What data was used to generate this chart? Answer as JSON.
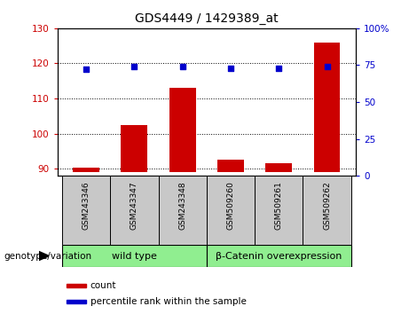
{
  "title": "GDS4449 / 1429389_at",
  "categories": [
    "GSM243346",
    "GSM243347",
    "GSM243348",
    "GSM509260",
    "GSM509261",
    "GSM509262"
  ],
  "bar_values": [
    90.3,
    102.5,
    113.0,
    92.5,
    91.5,
    126.0
  ],
  "scatter_values": [
    72,
    74,
    74,
    73,
    73,
    74
  ],
  "ylim_left": [
    88,
    130
  ],
  "ylim_right": [
    0,
    100
  ],
  "yticks_left": [
    90,
    100,
    110,
    120,
    130
  ],
  "yticks_right": [
    0,
    25,
    50,
    75,
    100
  ],
  "bar_color": "#cc0000",
  "scatter_color": "#0000cc",
  "bar_bottom": 89,
  "groups": [
    {
      "label": "wild type",
      "start": 0,
      "end": 3,
      "color": "#90ee90"
    },
    {
      "label": "β-Catenin overexpression",
      "start": 3,
      "end": 6,
      "color": "#90ee90"
    }
  ],
  "genotype_label": "genotype/variation",
  "legend_count_label": "count",
  "legend_percentile_label": "percentile rank within the sample",
  "background_color": "#ffffff",
  "plot_bg_color": "#ffffff",
  "tick_color_left": "#cc0000",
  "tick_color_right": "#0000cc",
  "title_fontsize": 10,
  "legend_fontsize": 7.5,
  "gray_bg": "#c8c8c8"
}
